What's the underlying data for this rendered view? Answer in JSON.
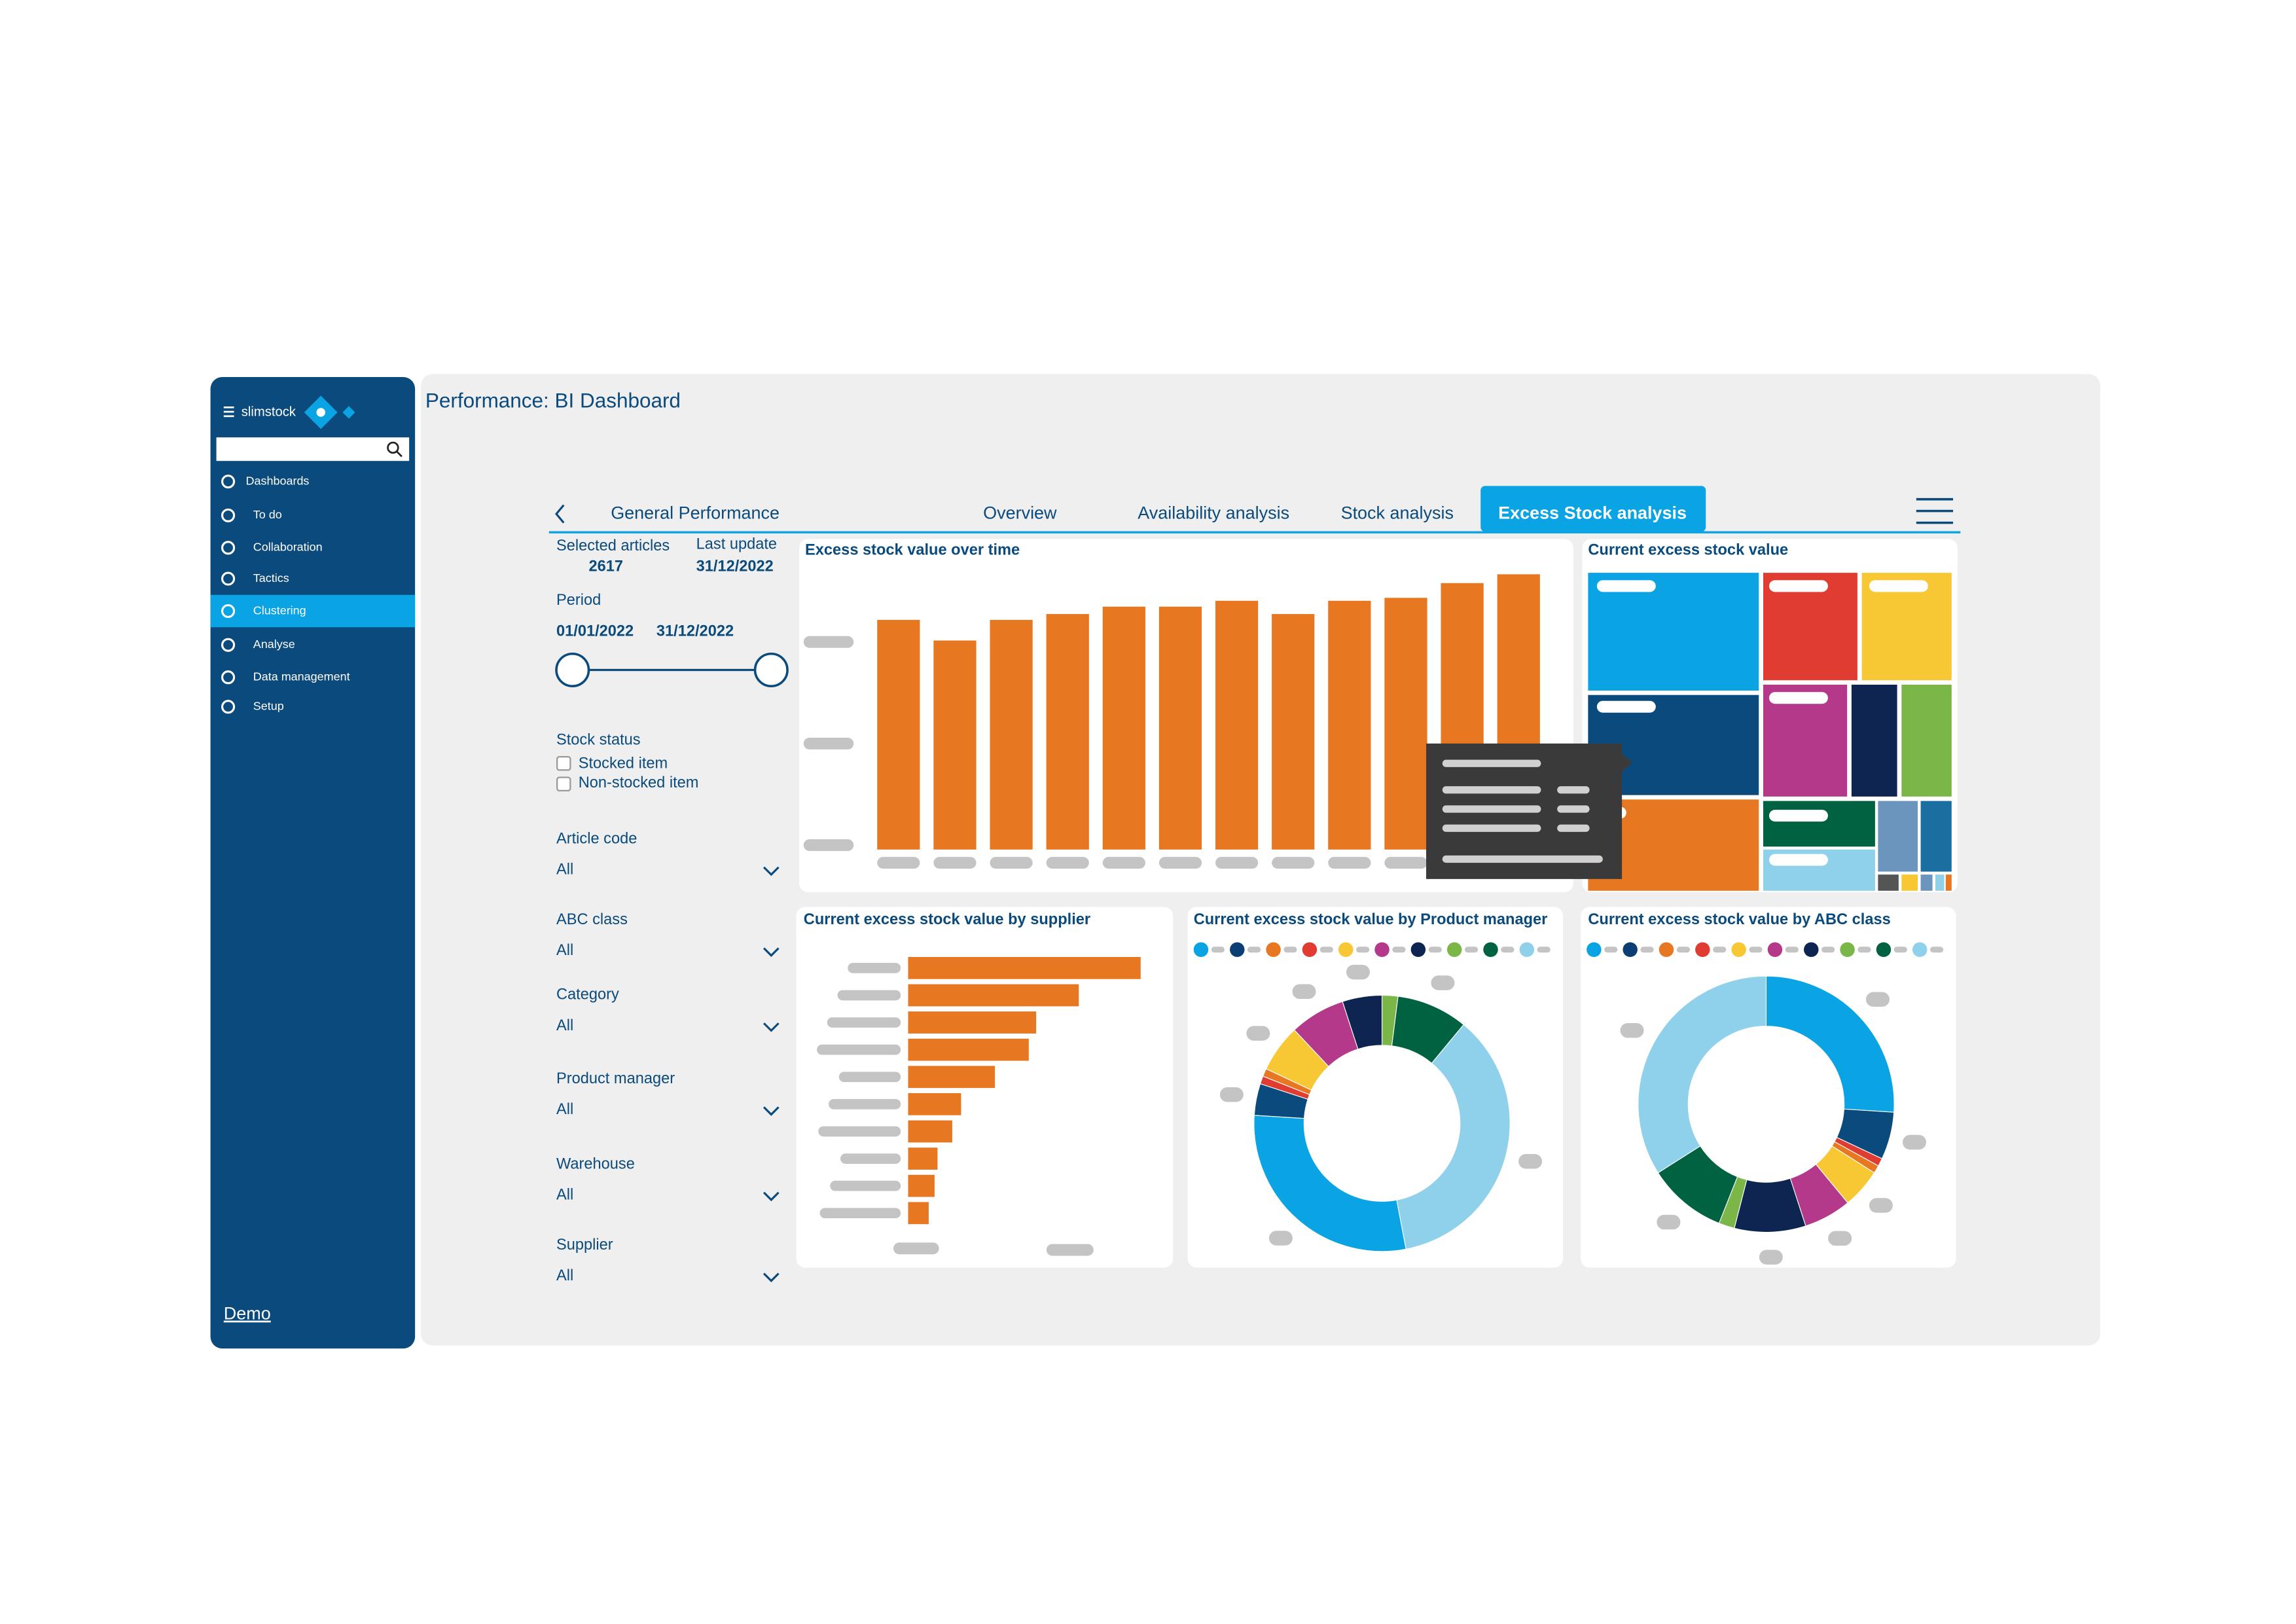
{
  "header": {
    "title": "Performance: BI Dashboard"
  },
  "sidebar": {
    "brand": "slimstock",
    "menu": [
      "Dashboards",
      "To do",
      "Collaboration",
      "Tactics",
      "Clustering",
      "Analyse",
      "Data management",
      "Setup"
    ],
    "footer_link": "Demo"
  },
  "tabs": [
    "General Performance",
    "Overview",
    "Availability analysis",
    "Stock analysis",
    "Excess Stock analysis"
  ],
  "filters": {
    "selected_articles": {
      "label": "Selected articles",
      "value": "2617"
    },
    "last_update": {
      "label": "Last update",
      "value": "31/12/2022"
    },
    "period": {
      "label": "Period",
      "from": "01/01/2022",
      "to": "31/12/2022"
    },
    "stock_status": {
      "label": "Stock status",
      "options": [
        "Stocked item",
        "Non-stocked item"
      ]
    },
    "dropdowns": [
      {
        "label": "Article code",
        "value": "All"
      },
      {
        "label": "ABC class",
        "value": "All"
      },
      {
        "label": "Category",
        "value": "All"
      },
      {
        "label": "Product manager",
        "value": "All"
      },
      {
        "label": "Warehouse",
        "value": "All"
      },
      {
        "label": "Supplier",
        "value": "All"
      }
    ]
  },
  "charts": {
    "over_time": {
      "type": "bar",
      "title": "Excess stock value over time",
      "values": [
        156,
        142,
        156,
        160,
        165,
        165,
        169,
        160,
        169,
        171,
        181,
        187
      ],
      "color": "#e87722"
    },
    "treemap": {
      "title": "Current excess stock value"
    },
    "by_supplier": {
      "type": "bar",
      "title": "Current excess stock value by supplier",
      "values": [
        158,
        116,
        87,
        82,
        59,
        36,
        30,
        20,
        18,
        14
      ],
      "color": "#e87722"
    },
    "by_product_manager": {
      "type": "donut",
      "title": "Current excess stock value by Product manager",
      "values": [
        5,
        2,
        9,
        36,
        29,
        4,
        1,
        1,
        6,
        7
      ],
      "colors": [
        "#0d2550",
        "#7ab648",
        "#006241",
        "#8fd0ea",
        "#0aa3e3",
        "#0b4a7c",
        "#e03c31",
        "#e87722",
        "#f7c734",
        "#b5398a"
      ]
    },
    "by_abc_class": {
      "type": "donut",
      "title": "Current excess stock value by ABC class",
      "values": [
        26,
        6,
        1,
        1,
        5,
        6,
        9,
        2,
        10,
        34
      ],
      "colors": [
        "#0aa3e3",
        "#0b4a7c",
        "#e03c31",
        "#e87722",
        "#f7c734",
        "#b5398a",
        "#0d2550",
        "#7ab648",
        "#006241",
        "#8fd0ea"
      ]
    },
    "legend_colors": [
      "#0aa3e3",
      "#0b3f73",
      "#e87722",
      "#e03c31",
      "#f7c734",
      "#b5398a",
      "#0d2550",
      "#7ab648",
      "#006241",
      "#8fd0ea"
    ]
  }
}
